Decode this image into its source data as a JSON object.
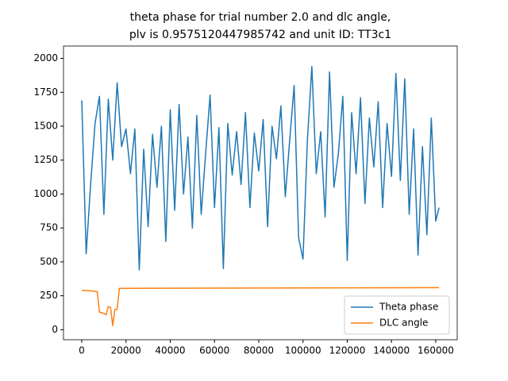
{
  "chart_data": {
    "type": "line",
    "title": [
      "theta phase for trial number 2.0 and dlc angle,",
      "plv is 0.9575120447985742 and unit ID: TT3c1"
    ],
    "xlim": [
      -8250,
      169700
    ],
    "ylim": [
      -74,
      2091
    ],
    "xticks": [
      0,
      20000,
      40000,
      60000,
      80000,
      100000,
      120000,
      140000,
      160000
    ],
    "yticks": [
      0,
      250,
      500,
      750,
      1000,
      1250,
      1500,
      1750,
      2000
    ],
    "legend": "lower right",
    "series": [
      {
        "name": "Theta phase",
        "color": "#1f77b4",
        "x": [
          0,
          2000,
          4000,
          6000,
          8000,
          10000,
          12000,
          14000,
          16000,
          18000,
          20000,
          22000,
          24000,
          26000,
          28000,
          30000,
          32000,
          34000,
          36000,
          38000,
          40000,
          42000,
          44000,
          46000,
          48000,
          50000,
          52000,
          54000,
          56000,
          58000,
          60000,
          62000,
          64000,
          66000,
          68000,
          70000,
          72000,
          74000,
          76000,
          78000,
          80000,
          82000,
          84000,
          86000,
          88000,
          90000,
          92000,
          94000,
          96000,
          98000,
          100000,
          102000,
          104000,
          106000,
          108000,
          110000,
          112000,
          114000,
          116000,
          118000,
          120000,
          122000,
          124000,
          126000,
          128000,
          130000,
          132000,
          134000,
          136000,
          138000,
          140000,
          142000,
          144000,
          146000,
          148000,
          150000,
          152000,
          154000,
          156000,
          158000,
          160000,
          161500
        ],
        "values": [
          1690,
          560,
          1070,
          1520,
          1720,
          850,
          1700,
          1250,
          1820,
          1350,
          1480,
          1150,
          1480,
          440,
          1330,
          760,
          1440,
          1050,
          1500,
          650,
          1620,
          880,
          1660,
          1000,
          1420,
          750,
          1580,
          850,
          1300,
          1730,
          900,
          1490,
          450,
          1520,
          1140,
          1460,
          1070,
          1600,
          900,
          1450,
          1170,
          1550,
          760,
          1500,
          1260,
          1650,
          980,
          1400,
          1800,
          680,
          520,
          1400,
          1940,
          1150,
          1460,
          830,
          1900,
          1050,
          1300,
          1720,
          510,
          1600,
          1150,
          1710,
          930,
          1560,
          1200,
          1680,
          900,
          1520,
          1130,
          1890,
          1100,
          1850,
          850,
          1480,
          550,
          1350,
          700,
          1560,
          800,
          900
        ]
      },
      {
        "name": "DLC angle",
        "color": "#ff7f0e",
        "x": [
          0,
          5000,
          7000,
          8000,
          10000,
          11000,
          12000,
          13000,
          14000,
          15000,
          16000,
          17000,
          160000,
          161500
        ],
        "values": [
          290,
          285,
          280,
          130,
          120,
          110,
          170,
          165,
          30,
          150,
          150,
          305,
          310,
          310
        ]
      }
    ]
  }
}
